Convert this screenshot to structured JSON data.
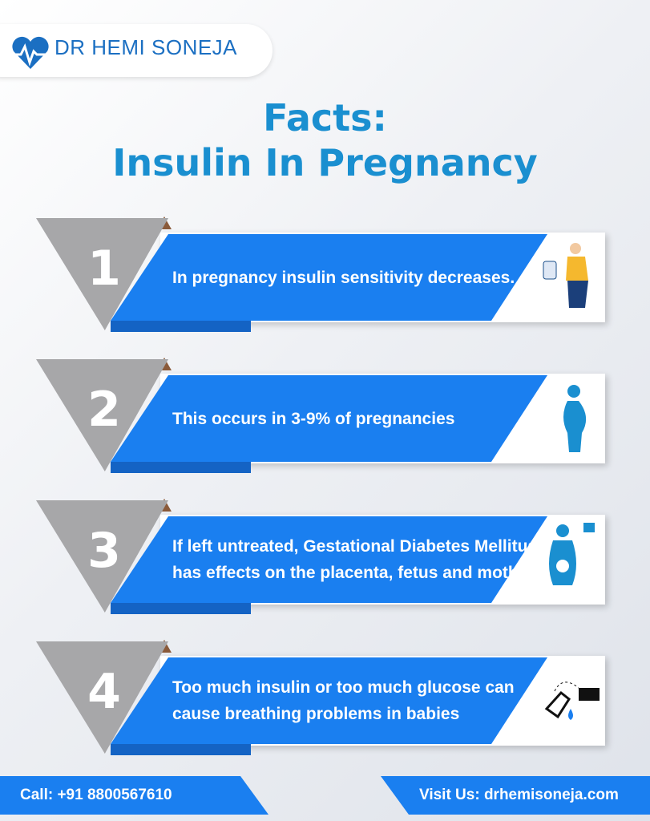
{
  "header": {
    "brand": "DR HEMI SONEJA"
  },
  "title": [
    "Facts:",
    "Insulin In Pregnancy"
  ],
  "facts": [
    {
      "number": "1",
      "text": "In pregnancy insulin sensitivity decreases."
    },
    {
      "number": "2",
      "text": "This occurs in 3-9% of pregnancies"
    },
    {
      "number": "3",
      "text": "If left untreated, Gestational Diabetes Mellitus has effects on the placenta, fetus and mother"
    },
    {
      "number": "4",
      "text": "Too much insulin or too much glucose can cause breathing problems in babies"
    }
  ],
  "footer": {
    "call": "Call: +91 8800567610",
    "visit": "Visit Us: drhemisoneja.com"
  }
}
